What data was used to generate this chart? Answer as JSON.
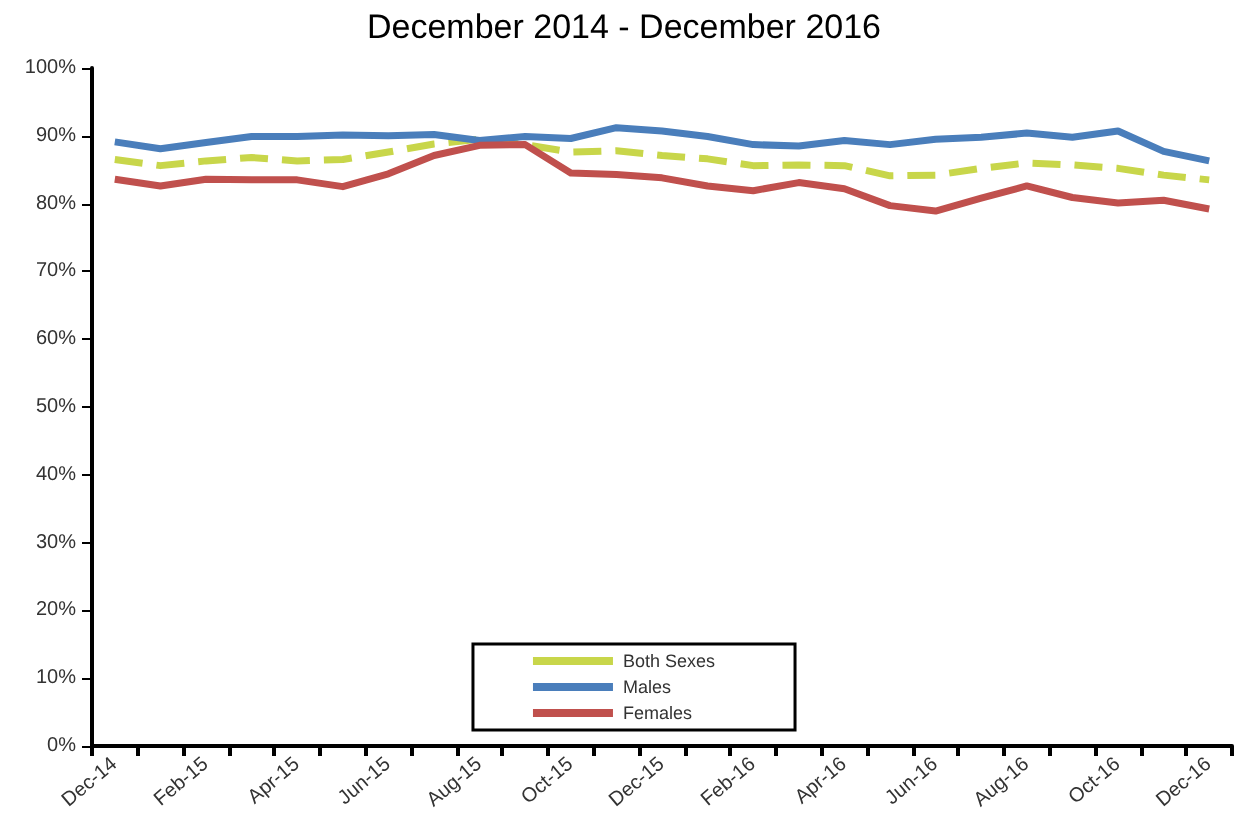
{
  "chart_data": {
    "type": "line",
    "title": "December 2014 - December 2016",
    "categories": [
      "Dec-14",
      null,
      "Feb-15",
      null,
      "Apr-15",
      null,
      "Jun-15",
      null,
      "Aug-15",
      null,
      "Oct-15",
      null,
      "Dec-15",
      null,
      "Feb-16",
      null,
      "Apr-16",
      null,
      "Jun-16",
      null,
      "Aug-16",
      null,
      "Oct-16",
      null,
      "Dec-16"
    ],
    "series": [
      {
        "name": "Both Sexes",
        "color": "#c8d64a",
        "line_style": "dashed",
        "values": [
          86.5,
          85.6,
          86.3,
          86.8,
          86.3,
          86.5,
          87.6,
          88.8,
          89.5,
          88.7,
          87.6,
          87.8,
          87.1,
          86.6,
          85.6,
          85.7,
          85.6,
          84.1,
          84.2,
          85.2,
          86.0,
          85.7,
          85.2,
          84.2,
          83.5
        ]
      },
      {
        "name": "Males",
        "color": "#4a7ebb",
        "line_style": "solid",
        "values": [
          89.1,
          88.1,
          89.0,
          89.9,
          89.9,
          90.1,
          90.0,
          90.2,
          89.3,
          89.9,
          89.6,
          91.2,
          90.7,
          89.9,
          88.7,
          88.5,
          89.3,
          88.7,
          89.5,
          89.8,
          90.4,
          89.8,
          90.7,
          87.7,
          86.3
        ]
      },
      {
        "name": "Females",
        "color": "#c0504d",
        "line_style": "solid",
        "values": [
          83.6,
          82.6,
          83.6,
          83.5,
          83.5,
          82.5,
          84.4,
          87.1,
          88.6,
          88.7,
          84.5,
          84.3,
          83.8,
          82.6,
          81.9,
          83.1,
          82.2,
          79.7,
          78.9,
          80.8,
          82.6,
          80.9,
          80.1,
          80.5,
          79.2
        ]
      }
    ],
    "ylim": [
      0,
      100
    ],
    "yticks": [
      {
        "value": 0,
        "label": "0%"
      },
      {
        "value": 10,
        "label": "10%"
      },
      {
        "value": 20,
        "label": "20%"
      },
      {
        "value": 30,
        "label": "30%"
      },
      {
        "value": 40,
        "label": "40%"
      },
      {
        "value": 50,
        "label": "50%"
      },
      {
        "value": 60,
        "label": "60%"
      },
      {
        "value": 70,
        "label": "70%"
      },
      {
        "value": 80,
        "label": "80%"
      },
      {
        "value": 90,
        "label": "90%"
      },
      {
        "value": 100,
        "label": "100%"
      }
    ],
    "grid": false,
    "legend": "bottom",
    "marker": "none"
  }
}
